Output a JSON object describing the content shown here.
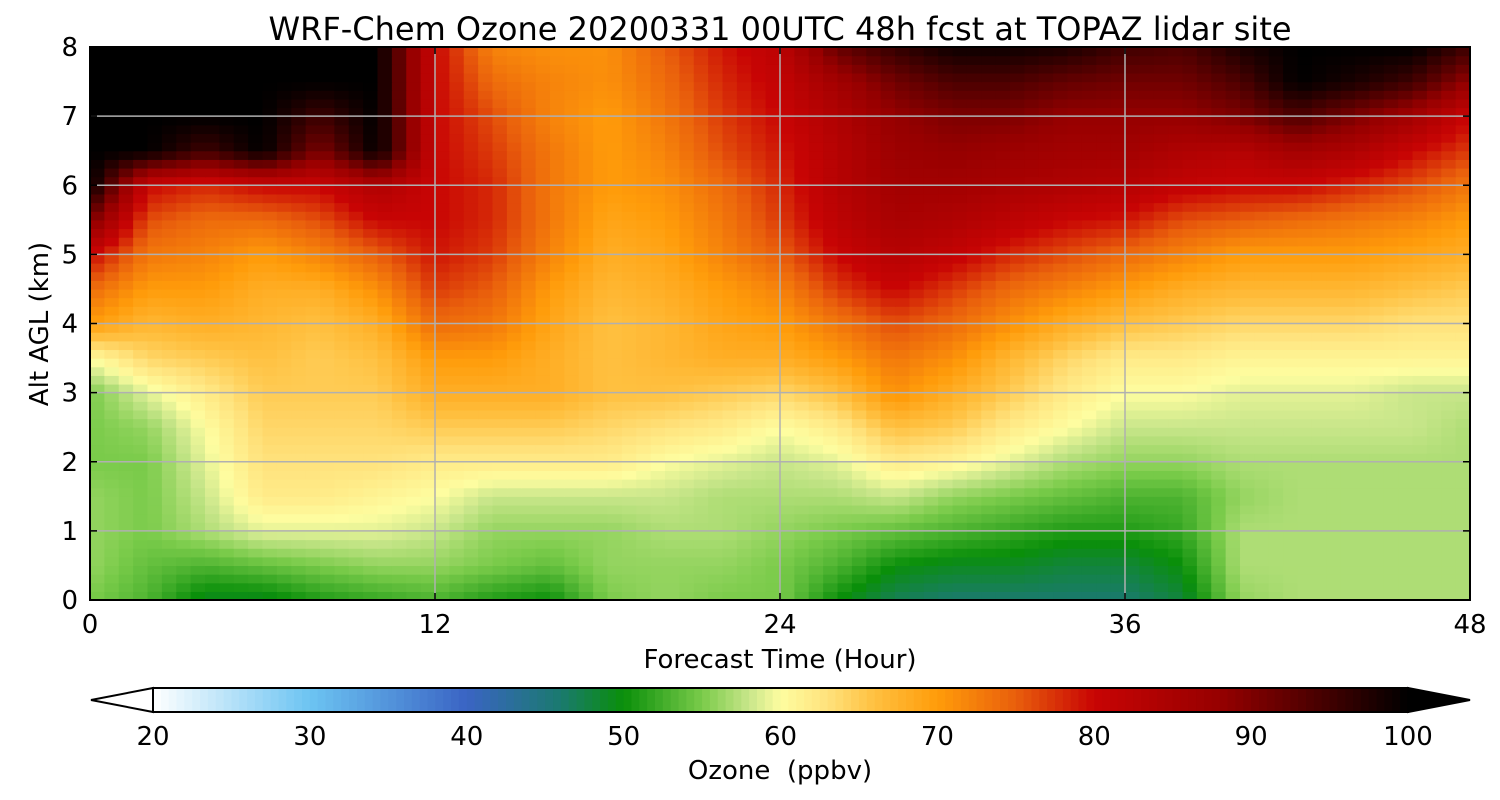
{
  "chart_data": {
    "type": "heatmap",
    "title": "WRF-Chem Ozone 20200331 00UTC 48h fcst at TOPAZ lidar site",
    "xlabel": "Forecast Time (Hour)",
    "ylabel": "Alt AGL (km)",
    "xlim": [
      0,
      48
    ],
    "ylim": [
      0,
      8
    ],
    "xticks": [
      0,
      12,
      24,
      36,
      48
    ],
    "yticks": [
      0,
      1,
      2,
      3,
      4,
      5,
      6,
      7,
      8
    ],
    "grid": true,
    "x": [
      0,
      2,
      4,
      6,
      8,
      10,
      12,
      14,
      16,
      18,
      20,
      22,
      24,
      26,
      28,
      30,
      32,
      34,
      36,
      38,
      40,
      42,
      44,
      46,
      48
    ],
    "y": [
      0,
      0.5,
      1,
      1.5,
      2,
      2.5,
      3,
      3.5,
      4,
      4.5,
      5,
      5.5,
      6,
      6.5,
      7,
      7.5,
      8
    ],
    "z": [
      [
        55,
        53,
        49,
        49,
        51,
        52,
        53,
        51,
        50,
        55,
        56,
        55,
        55,
        50,
        47,
        46,
        46,
        46,
        46,
        48,
        56,
        57,
        57,
        57,
        57
      ],
      [
        56,
        54,
        53,
        54,
        55,
        56,
        56,
        55,
        54,
        56,
        56,
        56,
        55,
        53,
        50,
        49,
        49,
        48,
        48,
        50,
        57,
        57,
        57,
        57,
        57
      ],
      [
        56,
        55,
        57,
        59,
        59,
        59,
        58,
        56,
        56,
        56,
        57,
        57,
        56,
        55,
        54,
        53,
        52,
        51,
        51,
        52,
        57,
        57,
        57,
        57,
        57
      ],
      [
        56,
        55,
        58,
        62,
        62,
        61,
        60,
        58,
        58,
        58,
        58,
        57,
        57,
        57,
        58,
        56,
        55,
        54,
        53,
        53,
        56,
        57,
        57,
        57,
        57
      ],
      [
        55,
        55,
        59,
        63,
        63,
        63,
        62,
        62,
        62,
        62,
        60,
        59,
        58,
        59,
        62,
        61,
        59,
        57,
        56,
        56,
        57,
        57,
        57,
        57,
        57
      ],
      [
        55,
        56,
        60,
        64,
        64,
        64,
        65,
        65,
        65,
        64,
        63,
        62,
        60,
        62,
        66,
        65,
        62,
        60,
        58,
        58,
        58,
        58,
        58,
        58,
        57
      ],
      [
        55,
        59,
        62,
        65,
        65,
        65,
        68,
        68,
        68,
        66,
        66,
        65,
        64,
        66,
        71,
        68,
        65,
        62,
        60,
        60,
        59,
        59,
        59,
        58,
        58
      ],
      [
        60,
        64,
        65,
        66,
        65,
        66,
        70,
        70,
        68,
        66,
        67,
        68,
        68,
        70,
        73,
        71,
        67,
        64,
        62,
        62,
        61,
        61,
        61,
        61,
        61
      ],
      [
        70,
        67,
        68,
        67,
        66,
        68,
        74,
        73,
        69,
        66,
        67,
        69,
        70,
        73,
        76,
        74,
        71,
        68,
        66,
        65,
        64,
        64,
        64,
        63,
        63
      ],
      [
        74,
        70,
        70,
        68,
        68,
        71,
        77,
        75,
        70,
        67,
        68,
        70,
        72,
        77,
        80,
        77,
        74,
        72,
        70,
        68,
        67,
        67,
        67,
        66,
        65
      ],
      [
        80,
        73,
        72,
        70,
        72,
        75,
        79,
        77,
        72,
        68,
        69,
        72,
        75,
        80,
        83,
        81,
        78,
        76,
        74,
        72,
        70,
        70,
        70,
        69,
        68
      ],
      [
        90,
        76,
        74,
        74,
        76,
        80,
        80,
        78,
        73,
        69,
        70,
        73,
        77,
        82,
        85,
        84,
        82,
        80,
        79,
        76,
        75,
        74,
        73,
        72,
        70
      ],
      [
        100,
        80,
        78,
        80,
        80,
        84,
        80,
        78,
        73,
        70,
        71,
        74,
        78,
        83,
        86,
        86,
        85,
        84,
        83,
        81,
        80,
        80,
        78,
        76,
        73
      ],
      [
        100,
        100,
        95,
        100,
        90,
        100,
        80,
        77,
        73,
        70,
        72,
        76,
        79,
        83,
        87,
        88,
        87,
        86,
        86,
        84,
        83,
        86,
        84,
        80,
        77
      ],
      [
        100,
        100,
        100,
        100,
        95,
        100,
        80,
        76,
        72,
        70,
        73,
        77,
        80,
        84,
        88,
        90,
        90,
        88,
        88,
        88,
        90,
        94,
        90,
        86,
        80
      ],
      [
        100,
        100,
        100,
        100,
        100,
        100,
        80,
        74,
        72,
        71,
        74,
        78,
        81,
        86,
        91,
        94,
        94,
        92,
        91,
        91,
        94,
        100,
        98,
        95,
        88
      ],
      [
        100,
        100,
        100,
        100,
        100,
        100,
        80,
        72,
        71,
        71,
        75,
        79,
        82,
        92,
        96,
        99,
        99,
        98,
        95,
        94,
        98,
        100,
        100,
        100,
        95
      ]
    ],
    "colorbar": {
      "label": "Ozone  (ppbv)",
      "min": 20,
      "max": 100,
      "ticks": [
        20,
        30,
        40,
        50,
        60,
        70,
        80,
        90,
        100
      ],
      "extend": "both",
      "stops": [
        {
          "v": 20,
          "c": "#ffffff"
        },
        {
          "v": 30,
          "c": "#6cc4f2"
        },
        {
          "v": 40,
          "c": "#3a64c4"
        },
        {
          "v": 46,
          "c": "#1a7a6e"
        },
        {
          "v": 50,
          "c": "#0a8f0a"
        },
        {
          "v": 55,
          "c": "#7acb4a"
        },
        {
          "v": 58,
          "c": "#c8e68a"
        },
        {
          "v": 60,
          "c": "#fefda0"
        },
        {
          "v": 63,
          "c": "#ffe27c"
        },
        {
          "v": 66,
          "c": "#ffc040"
        },
        {
          "v": 70,
          "c": "#ff9c0a"
        },
        {
          "v": 75,
          "c": "#e95f0c"
        },
        {
          "v": 80,
          "c": "#c80404"
        },
        {
          "v": 88,
          "c": "#960000"
        },
        {
          "v": 95,
          "c": "#400000"
        },
        {
          "v": 100,
          "c": "#000000"
        }
      ]
    }
  }
}
